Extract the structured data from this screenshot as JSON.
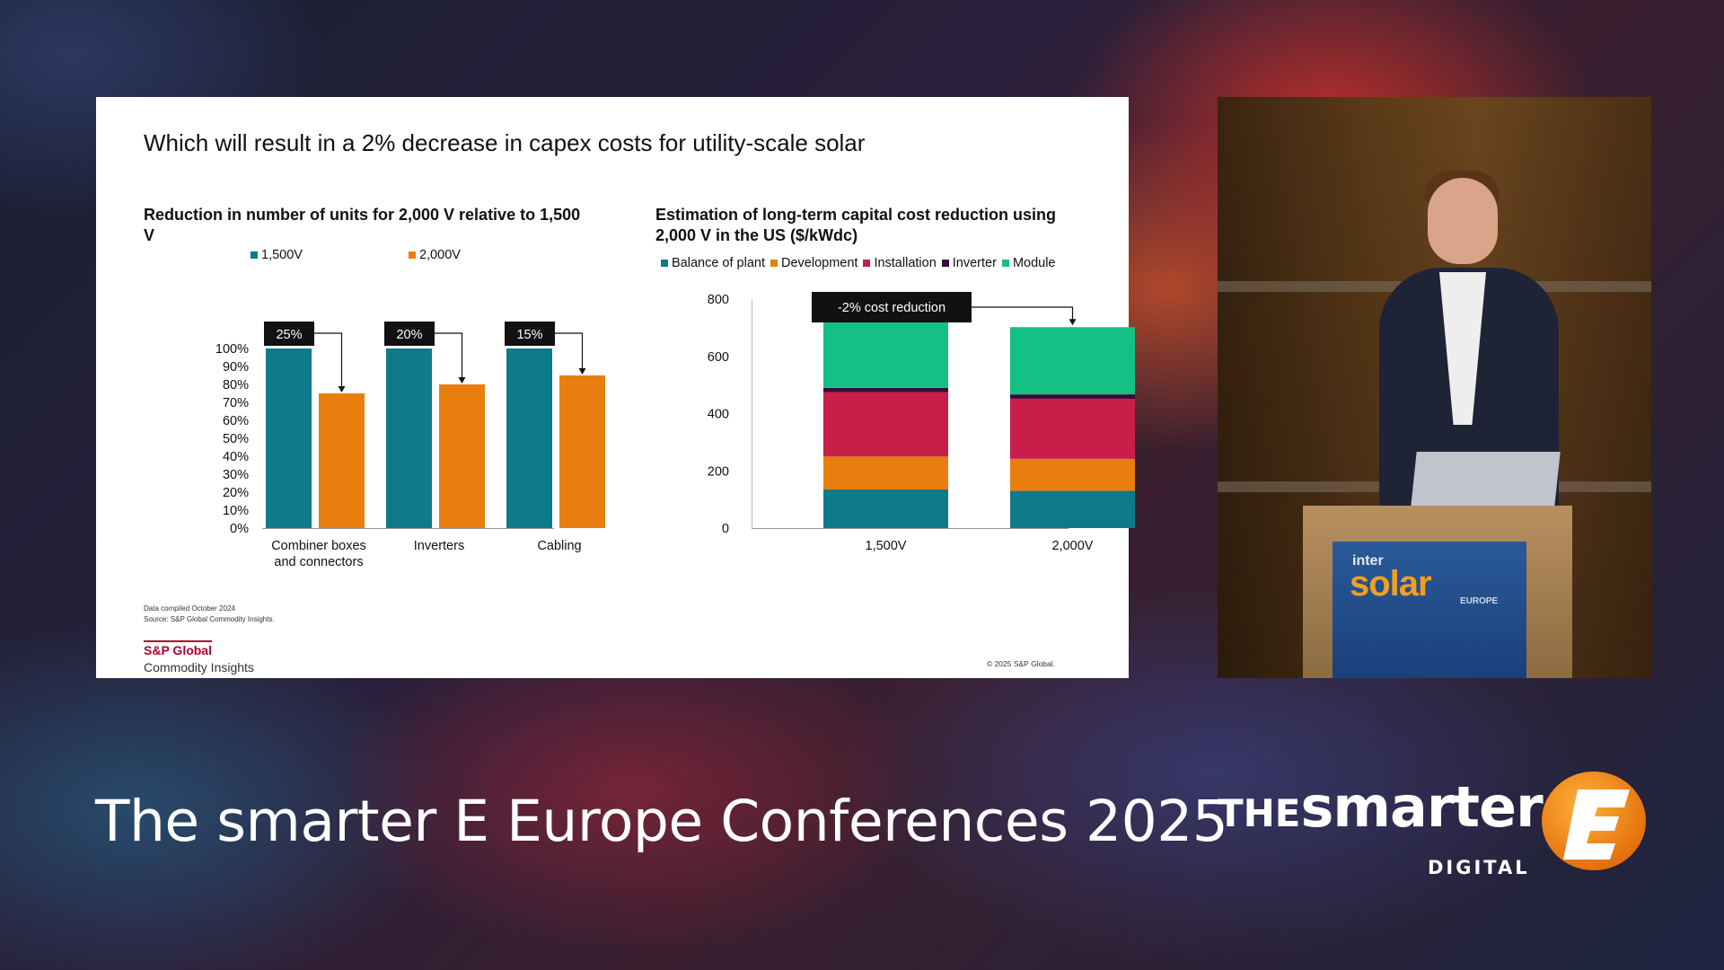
{
  "slide": {
    "title": "Which will result in a 2% decrease in capex costs for utility-scale solar",
    "footnote_compiled": "Data compiled October 2024",
    "footnote_source": "Source: S&P Global Commodity Insights.",
    "brand_top": "S&P Global",
    "brand_bottom": "Commodity Insights",
    "copyright": "© 2025 S&P Global."
  },
  "chart_data": [
    {
      "type": "bar",
      "title": "Reduction in number of units for 2,000 V relative to 1,500 V",
      "categories": [
        "Combiner boxes and connectors",
        "Inverters",
        "Cabling"
      ],
      "category_lines": [
        [
          "Combiner boxes",
          "and connectors"
        ],
        [
          "Inverters"
        ],
        [
          "Cabling"
        ]
      ],
      "series": [
        {
          "name": "1,500V",
          "color": "#0f7a8a",
          "values": [
            100,
            100,
            100
          ]
        },
        {
          "name": "2,000V",
          "color": "#e87e0e",
          "values": [
            75,
            80,
            85
          ]
        }
      ],
      "annotations": [
        "25%",
        "20%",
        "15%"
      ],
      "ylim": [
        0,
        100
      ],
      "yticks": [
        "0%",
        "10%",
        "20%",
        "30%",
        "40%",
        "50%",
        "60%",
        "70%",
        "80%",
        "90%",
        "100%"
      ],
      "grid": false,
      "legend": "top"
    },
    {
      "type": "bar",
      "stacked": true,
      "title": "Estimation of long-term capital cost reduction using 2,000 V in the US ($/kWdc)",
      "categories": [
        "1,500V",
        "2,000V"
      ],
      "series": [
        {
          "name": "Balance of plant",
          "color": "#0f7a8a",
          "values": [
            135,
            130
          ]
        },
        {
          "name": "Development",
          "color": "#e87e0e",
          "values": [
            115,
            112
          ]
        },
        {
          "name": "Installation",
          "color": "#c81e4a",
          "values": [
            225,
            210
          ]
        },
        {
          "name": "Inverter",
          "color": "#3a0a3a",
          "values": [
            15,
            15
          ]
        },
        {
          "name": "Module",
          "color": "#14c084",
          "values": [
            230,
            235
          ]
        }
      ],
      "annotation": "-2% cost reduction",
      "ylim": [
        0,
        800
      ],
      "yticks": [
        "0",
        "200",
        "400",
        "600",
        "800"
      ],
      "grid": false,
      "legend": "top"
    }
  ],
  "podium": {
    "logo_small": "inter",
    "logo_big": "solar",
    "logo_region": "EUROPE"
  },
  "footer": {
    "conference_title": "The smarter E Europe Conferences 2025",
    "brand_the": "THE",
    "brand_smarter": "smarter",
    "brand_digital": "DIGITAL",
    "brand_e_color": "#f08a12"
  }
}
